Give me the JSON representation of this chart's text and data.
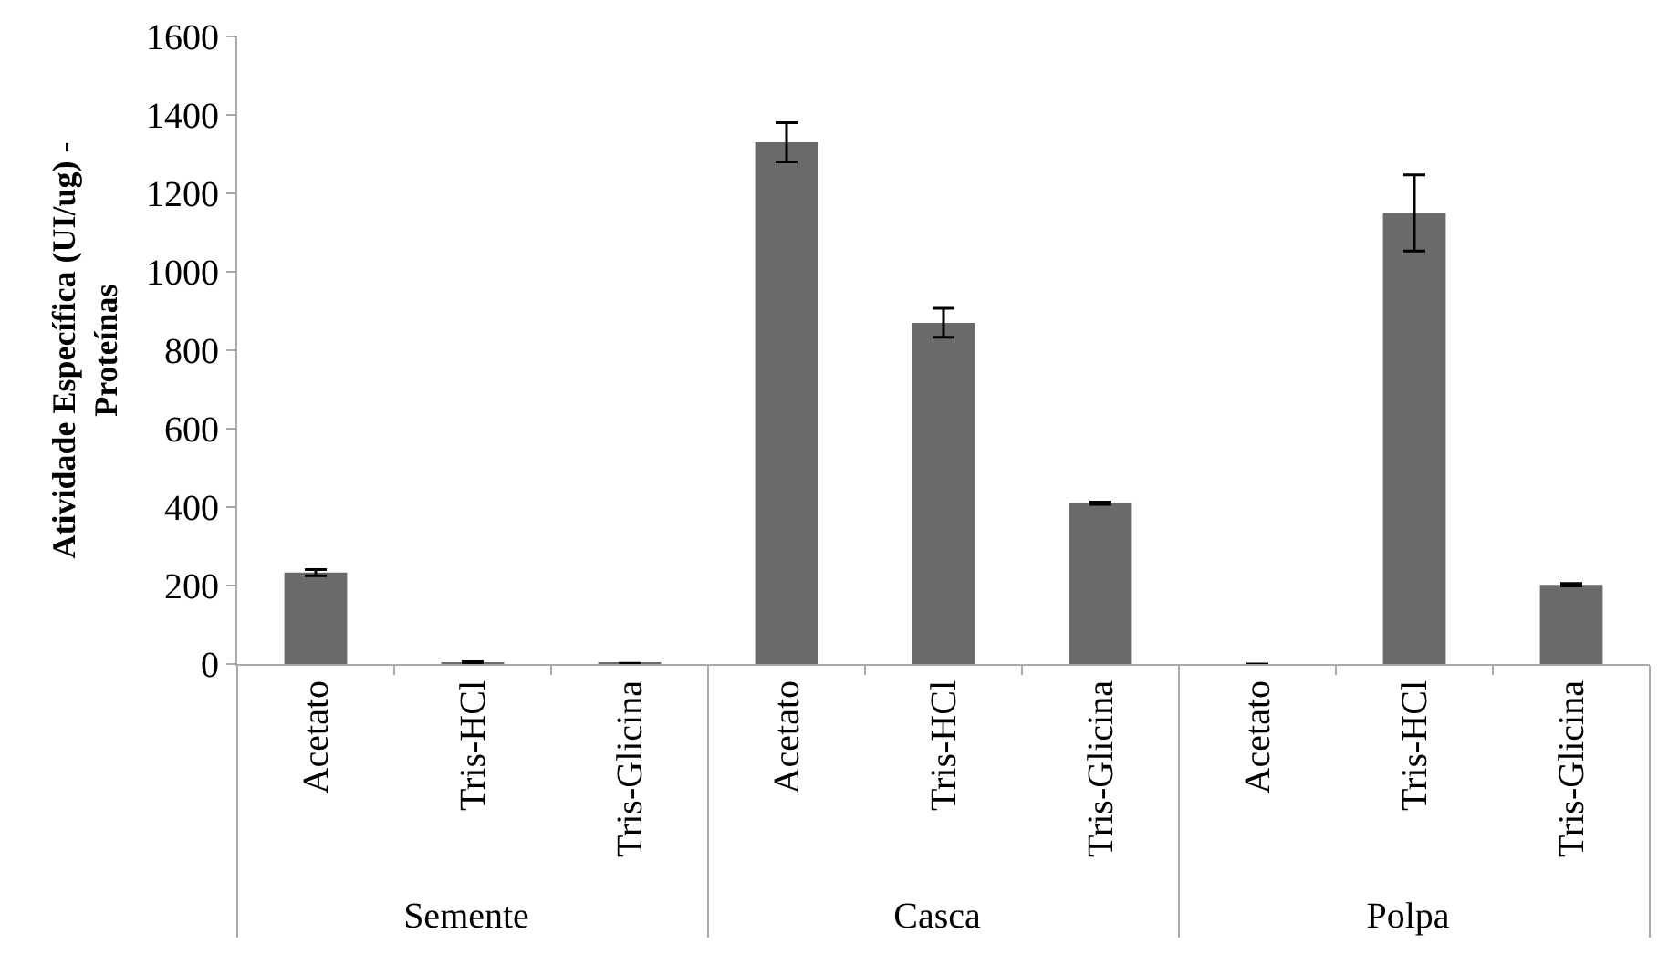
{
  "chart_data": {
    "type": "bar",
    "ylabel": "Atividade Específica (UI/ug) -\nProteínas",
    "categories": [
      "Acetato",
      "Tris-HCl",
      "Tris-Glicina",
      "Acetato",
      "Tris-HCl",
      "Tris-Glicina",
      "Acetato",
      "Tris-HCl",
      "Tris-Glicina"
    ],
    "annotations": [
      "Semente",
      "Casca",
      "Polpa"
    ],
    "values": [
      233,
      3,
      1,
      1330,
      870,
      410,
      0,
      1150,
      202
    ],
    "errors": [
      8,
      3,
      1,
      50,
      37,
      3,
      null,
      97,
      3
    ],
    "color": "#6a6a6a",
    "ylim": [
      0,
      1600
    ],
    "yticks": [
      0,
      200,
      400,
      600,
      800,
      1000,
      1200,
      1400,
      1600
    ],
    "grid": false
  }
}
